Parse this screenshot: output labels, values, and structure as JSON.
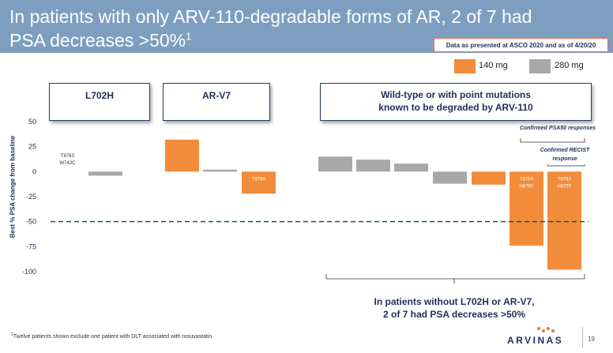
{
  "title": {
    "line1": "In patients with only ARV-110-degradable forms of AR, 2 of 7 had",
    "line2": "PSA decreases >50%",
    "sup": "1"
  },
  "asco_note": "Data as presented at ASCO 2020 and as of 4/20/20",
  "legend": [
    {
      "label": "140 mg",
      "color": "#f28c3b"
    },
    {
      "label": "280 mg",
      "color": "#a8a8a8"
    }
  ],
  "groups": {
    "l702h": "L702H",
    "arv7": "AR-V7",
    "wildtype": "Wild-type or with point mutations known to be degraded by ARV-110"
  },
  "annotations": {
    "psa50": "Confirmed PSA50 responses",
    "recist": "Confirmed RECIST response"
  },
  "conclusion": {
    "line1": "In patients without L702H or AR-V7,",
    "line2": "2 of 7 had PSA decreases >50%"
  },
  "footnote": {
    "sup": "1",
    "text": "Twelve patients shown exclude one patient with DLT associated with rosuvastatin"
  },
  "logo": "ARVINAS",
  "page_number": "19",
  "chart_data": {
    "type": "bar",
    "ylabel": "Best % PSA change from baseline",
    "ylim": [
      -100,
      50
    ],
    "yticks": [
      50,
      25,
      0,
      -25,
      -50,
      -75,
      -100
    ],
    "reference_line": -50,
    "bars": [
      {
        "value": 0,
        "dose": "140 mg",
        "label": "T878S\nW742C",
        "group": "L702H"
      },
      {
        "value": -4,
        "dose": "280 mg",
        "label": "",
        "group": "L702H"
      },
      {
        "value": 32,
        "dose": "140 mg",
        "label": "",
        "group": "AR-V7"
      },
      {
        "value": 2,
        "dose": "280 mg",
        "label": "",
        "group": "AR-V7"
      },
      {
        "value": -22,
        "dose": "140 mg",
        "label": "T878A",
        "group": "AR-V7"
      },
      {
        "value": 15,
        "dose": "280 mg",
        "label": "",
        "group": "Wild-type"
      },
      {
        "value": 12,
        "dose": "280 mg",
        "label": "",
        "group": "Wild-type"
      },
      {
        "value": 8,
        "dose": "280 mg",
        "label": "",
        "group": "Wild-type"
      },
      {
        "value": -12,
        "dose": "280 mg",
        "label": "",
        "group": "Wild-type"
      },
      {
        "value": -13,
        "dose": "140 mg",
        "label": "",
        "group": "Wild-type"
      },
      {
        "value": -74,
        "dose": "140 mg",
        "label": "T878A\nH875Y",
        "group": "Wild-type"
      },
      {
        "value": -98,
        "dose": "140 mg",
        "label": "T878A\nH875Y",
        "group": "Wild-type"
      }
    ]
  }
}
